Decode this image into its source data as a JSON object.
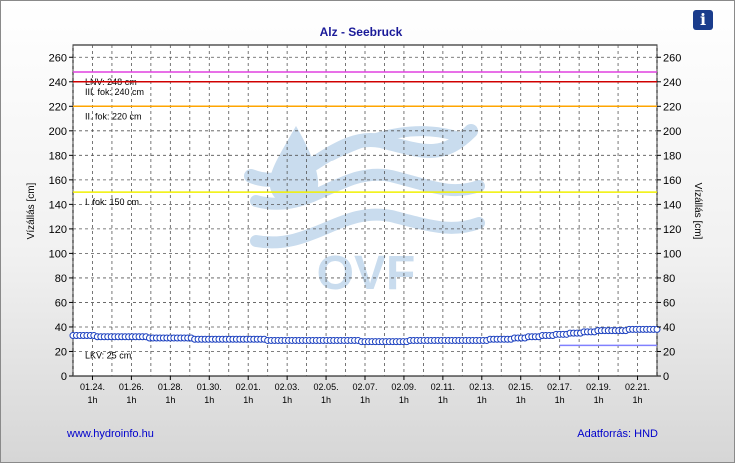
{
  "info_icon": "info-icon",
  "footer": {
    "link": "www.hydroinfo.hu",
    "source": "Adatforrás: HND"
  },
  "watermark": {
    "text": "OVF"
  },
  "chart_data": {
    "type": "line",
    "title": "Alz - Seebruck",
    "ylabel_left": "Vízállás [cm]",
    "ylabel_right": "Vízállás [cm]",
    "ylim": [
      0,
      270
    ],
    "yticks": [
      0,
      20,
      40,
      60,
      80,
      100,
      120,
      140,
      160,
      180,
      200,
      220,
      240,
      260
    ],
    "xlim_days": [
      0,
      30
    ],
    "xticks": [
      {
        "day": 1,
        "label": "01.24.",
        "sub": "1h"
      },
      {
        "day": 3,
        "label": "01.26.",
        "sub": "1h"
      },
      {
        "day": 5,
        "label": "01.28.",
        "sub": "1h"
      },
      {
        "day": 7,
        "label": "01.30.",
        "sub": "1h"
      },
      {
        "day": 9,
        "label": "02.01.",
        "sub": "1h"
      },
      {
        "day": 11,
        "label": "02.03.",
        "sub": "1h"
      },
      {
        "day": 13,
        "label": "02.05.",
        "sub": "1h"
      },
      {
        "day": 15,
        "label": "02.07.",
        "sub": "1h"
      },
      {
        "day": 17,
        "label": "02.09.",
        "sub": "1h"
      },
      {
        "day": 19,
        "label": "02.11.",
        "sub": "1h"
      },
      {
        "day": 21,
        "label": "02.13.",
        "sub": "1h"
      },
      {
        "day": 23,
        "label": "02.15.",
        "sub": "1h"
      },
      {
        "day": 25,
        "label": "02.17.",
        "sub": "1h"
      },
      {
        "day": 27,
        "label": "02.19.",
        "sub": "1h"
      },
      {
        "day": 29,
        "label": "02.21.",
        "sub": "1h"
      }
    ],
    "thresholds": [
      {
        "label": "LNV: 248 cm",
        "value": 248,
        "color": "#e040e0"
      },
      {
        "label": "III. fok: 240 cm",
        "value": 240,
        "color": "#d00000"
      },
      {
        "label": "II. fok: 220 cm",
        "value": 220,
        "color": "#ffa500"
      },
      {
        "label": "I. fok: 150 cm",
        "value": 150,
        "color": "#f0f000"
      },
      {
        "label": "LKV: 25 cm",
        "value": 25,
        "color": "#8080ff",
        "partial_from_day": 25
      }
    ],
    "series": [
      {
        "color": "#1a3fbf",
        "y": [
          33,
          33,
          33,
          33,
          33,
          33,
          33,
          32,
          32,
          32,
          32,
          32,
          32,
          32,
          32,
          32,
          32,
          32,
          32,
          32,
          32,
          32,
          31,
          31,
          31,
          31,
          31,
          31,
          31,
          31,
          31,
          31,
          31,
          31,
          31,
          30,
          30,
          30,
          30,
          30,
          30,
          30,
          30,
          30,
          30,
          30,
          30,
          30,
          30,
          30,
          30,
          30,
          30,
          30,
          30,
          30,
          29,
          29,
          29,
          29,
          29,
          29,
          29,
          29,
          29,
          29,
          29,
          29,
          29,
          29,
          29,
          29,
          29,
          29,
          29,
          29,
          29,
          29,
          29,
          29,
          29,
          29,
          29,
          28,
          28,
          28,
          28,
          28,
          28,
          28,
          28,
          28,
          28,
          28,
          28,
          28,
          28,
          29,
          29,
          29,
          29,
          29,
          29,
          29,
          29,
          29,
          29,
          29,
          29,
          29,
          29,
          29,
          29,
          29,
          29,
          29,
          29,
          29,
          29,
          29,
          30,
          30,
          30,
          30,
          30,
          30,
          30,
          31,
          31,
          31,
          31,
          32,
          32,
          32,
          32,
          33,
          33,
          33,
          33,
          34,
          34,
          34,
          34,
          35,
          35,
          35,
          35,
          36,
          36,
          36,
          36,
          37,
          37,
          37,
          37,
          37,
          37,
          37,
          37,
          37,
          38,
          38,
          38,
          38,
          38,
          38,
          38,
          38,
          38
        ]
      }
    ]
  }
}
